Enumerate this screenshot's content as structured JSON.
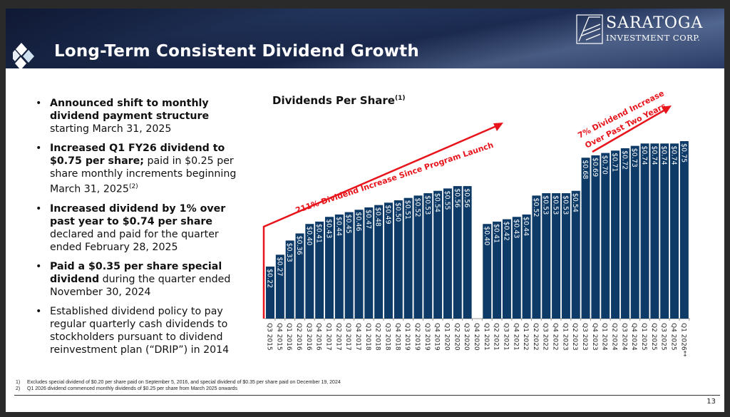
{
  "header": {
    "title": "Long-Term Consistent Dividend Growth",
    "brand_name": "SARATOGA",
    "brand_sub": "INVESTMENT CORP."
  },
  "bullets": [
    {
      "bold": "Announced shift to monthly dividend payment structure",
      "text": " starting March 31, 2025",
      "sup": ""
    },
    {
      "bold": "Increased Q1 FY26 dividend to $0.75 per share;",
      "text": " paid in $0.25 per share monthly increments beginning March 31, 2025",
      "sup": "(2)"
    },
    {
      "bold": "Increased dividend by 1% over past year to $0.74 per share",
      "text": " declared and paid for the quarter ended February 28, 2025",
      "sup": ""
    },
    {
      "bold": "Paid a $0.35 per share special dividend",
      "text": " during the quarter ended November 30, 2024",
      "sup": ""
    },
    {
      "bold": "",
      "text": "Established dividend policy to pay regular quarterly cash dividends to stockholders pursuant to dividend reinvestment plan (“DRIP”) in 2014",
      "sup": ""
    }
  ],
  "chart_data": {
    "type": "bar",
    "title": "Dividends Per Share",
    "title_sup": "(1)",
    "color": "#0d3a66",
    "annotation_color": "#e8141b",
    "grid": false,
    "categories": [
      "Q3 2015",
      "Q4 2015",
      "Q1 2016",
      "Q2 2016",
      "Q3 2016",
      "Q4 2016",
      "Q1 2017",
      "Q2 2017",
      "Q3 2017",
      "Q4 2017",
      "Q1 2018",
      "Q2 2018",
      "Q3 2018",
      "Q4 2018",
      "Q1 2019",
      "Q2 2019",
      "Q3 2019",
      "Q4 2019",
      "Q1 2020",
      "Q2 2020",
      "Q3 2020",
      "Q4 2020",
      "Q1 2021",
      "Q2 2021",
      "Q3 2021",
      "Q4 2021",
      "Q1 2022",
      "Q2 2022",
      "Q3 2022",
      "Q4 2022",
      "Q1 2023",
      "Q2 2023",
      "Q3 2023",
      "Q4 2023",
      "Q1 2024",
      "Q2 2024",
      "Q3 2024",
      "Q4 2024",
      "Q1 2025",
      "Q2 2025",
      "Q3 2025",
      "Q4 2025",
      "Q1 2026**"
    ],
    "values": [
      0.22,
      0.27,
      0.33,
      0.36,
      0.4,
      0.41,
      0.43,
      0.44,
      0.45,
      0.46,
      0.47,
      0.48,
      0.49,
      0.5,
      0.51,
      0.52,
      0.53,
      0.54,
      0.55,
      0.56,
      0.56,
      null,
      0.4,
      0.41,
      0.42,
      0.43,
      0.44,
      0.52,
      0.53,
      0.53,
      0.53,
      0.54,
      0.68,
      0.69,
      0.7,
      0.71,
      0.72,
      0.73,
      0.74,
      0.74,
      0.74,
      0.74,
      0.75
    ],
    "labels": [
      "$0.22",
      "$0.27",
      "$0.33",
      "$0.36",
      "$0.40",
      "$0.41",
      "$0.43",
      "$0.44",
      "$0.45",
      "$0.46",
      "$0.47",
      "$0.48",
      "$0.49",
      "$0.50",
      "$0.51",
      "$0.52",
      "$0.53",
      "$0.54",
      "$0.55",
      "$0.56",
      "$0.56",
      "",
      "$0.40",
      "$0.41",
      "$0.42",
      "$0.43",
      "$0.44",
      "$0.52",
      "$0.53",
      "$0.53",
      "$0.53",
      "$0.54",
      "$0.68",
      "$0.69",
      "$0.70",
      "$0.71",
      "$0.72",
      "$0.73",
      "$0.74",
      "$0.74",
      "$0.74",
      "$0.74",
      "$0.75"
    ],
    "ylim": [
      0,
      0.75
    ],
    "annotations": [
      {
        "text": "211% Dividend Increase Since Program Launch"
      },
      {
        "line1": "7% Dividend Increase",
        "line2": "Over Past Two Years"
      }
    ]
  },
  "footnotes": [
    {
      "num": "1)",
      "text": "Excludes special dividend of $0.20 per share paid on September 5, 2016, and special dividend of $0.35 per share paid on December 19, 2024"
    },
    {
      "num": "2)",
      "text": "Q1 2026 dividend commenced monthly dividends of $0.25 per share from March 2025 onwards"
    }
  ],
  "page_number": "13"
}
